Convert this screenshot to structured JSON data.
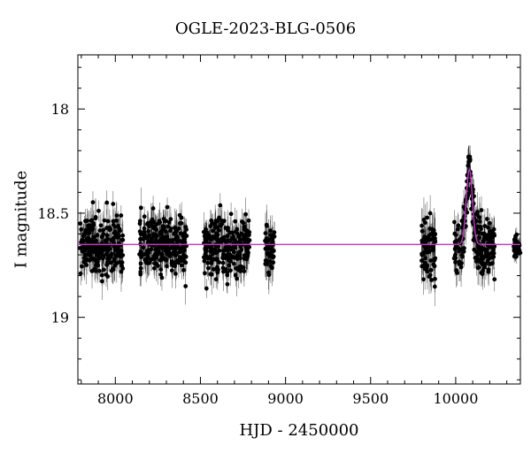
{
  "chart_data": {
    "type": "scatter",
    "title": "OGLE-2023-BLG-0506",
    "xlabel": "HJD - 2450000",
    "ylabel": "I magnitude",
    "xlim": [
      7780,
      10380
    ],
    "ylim": [
      19.32,
      17.74
    ],
    "y_inverted": true,
    "x_ticks": [
      8000,
      8500,
      9000,
      9500,
      10000
    ],
    "y_ticks": [
      18,
      18.5,
      19
    ],
    "colors": {
      "points": "#000000",
      "model": "#cc33cc"
    },
    "series": [
      {
        "marker": "filled-circle-with-errorbars",
        "seasons": [
          {
            "x_range": [
              7790,
              8045
            ],
            "mean_mag": 18.65,
            "scatter": 0.07,
            "err": 0.07
          },
          {
            "x_range": [
              8140,
              8420
            ],
            "mean_mag": 18.65,
            "scatter": 0.07,
            "err": 0.07
          },
          {
            "x_range": [
              8520,
              8790
            ],
            "mean_mag": 18.66,
            "scatter": 0.07,
            "err": 0.07
          },
          {
            "x_range": [
              8880,
              8935
            ],
            "mean_mag": 18.67,
            "scatter": 0.06,
            "err": 0.07
          },
          {
            "x_range": [
              9800,
              9880
            ],
            "mean_mag": 18.68,
            "scatter": 0.08,
            "err": 0.08
          },
          {
            "x_range": [
              9990,
              10230
            ],
            "mean_mag": 18.66,
            "scatter": 0.07,
            "err": 0.07
          },
          {
            "x_range": [
              10340,
              10380
            ],
            "mean_mag": 18.67,
            "scatter": 0.03,
            "err": 0.03
          }
        ]
      },
      {
        "marker": "line",
        "model": {
          "baseline": 18.65,
          "t0": 10080,
          "peak": 18.29,
          "width": 18
        }
      }
    ]
  }
}
